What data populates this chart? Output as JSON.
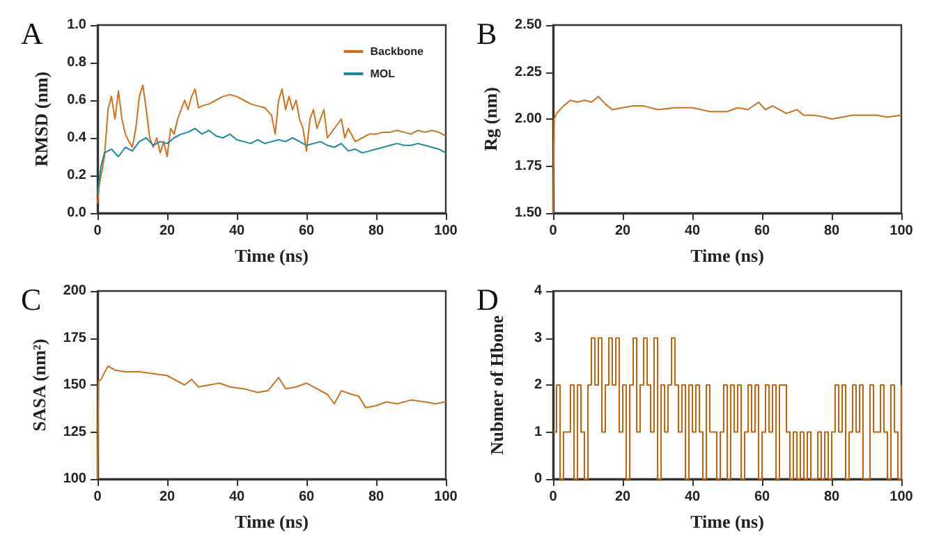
{
  "chart_data": [
    {
      "type": "line",
      "title": "A",
      "xlabel": "Time (ns)",
      "ylabel": "RMSD (nm)",
      "xlim": [
        0,
        100
      ],
      "xticks": [
        0,
        20,
        40,
        60,
        80,
        100
      ],
      "ylim": [
        0,
        1
      ],
      "yticks": [
        {
          "value": 0,
          "label": "0.0"
        },
        {
          "value": 0.2,
          "label": "0.2"
        },
        {
          "value": 0.4,
          "label": "0.4"
        },
        {
          "value": 0.6,
          "label": "0.6"
        },
        {
          "value": 0.8,
          "label": "0.8"
        },
        {
          "value": 1,
          "label": "1.0"
        }
      ],
      "grid": false,
      "legend": "top right",
      "marker": "none",
      "x": [
        0,
        0.5,
        1,
        2,
        3,
        4,
        5,
        6,
        7,
        8,
        9,
        10,
        11,
        12,
        13,
        14,
        15,
        16,
        17,
        18,
        19,
        20,
        21,
        22,
        23,
        24,
        25,
        26,
        27,
        28,
        29,
        30,
        32,
        34,
        36,
        38,
        40,
        42,
        44,
        46,
        48,
        50,
        51,
        52,
        53,
        54,
        55,
        56,
        57,
        58,
        59,
        60,
        61,
        62,
        63,
        64,
        65,
        66,
        68,
        70,
        71,
        72,
        74,
        76,
        78,
        80,
        82,
        84,
        86,
        88,
        90,
        92,
        94,
        96,
        98,
        100
      ],
      "series": [
        {
          "name": "Backbone",
          "color": "#d0701a",
          "values": [
            0.05,
            0.15,
            0.2,
            0.3,
            0.55,
            0.62,
            0.5,
            0.65,
            0.5,
            0.42,
            0.38,
            0.35,
            0.45,
            0.62,
            0.68,
            0.55,
            0.4,
            0.35,
            0.4,
            0.32,
            0.38,
            0.3,
            0.45,
            0.42,
            0.5,
            0.55,
            0.6,
            0.55,
            0.62,
            0.66,
            0.56,
            0.57,
            0.58,
            0.6,
            0.62,
            0.63,
            0.62,
            0.6,
            0.58,
            0.57,
            0.56,
            0.52,
            0.42,
            0.6,
            0.66,
            0.55,
            0.62,
            0.55,
            0.6,
            0.5,
            0.45,
            0.33,
            0.5,
            0.55,
            0.45,
            0.5,
            0.55,
            0.4,
            0.45,
            0.5,
            0.4,
            0.45,
            0.38,
            0.4,
            0.42,
            0.42,
            0.43,
            0.43,
            0.44,
            0.43,
            0.42,
            0.44,
            0.43,
            0.44,
            0.43,
            0.41
          ]
        },
        {
          "name": "MOL",
          "color": "#1a8a9a",
          "x": [
            0,
            1,
            2,
            4,
            6,
            8,
            10,
            12,
            14,
            16,
            18,
            20,
            22,
            24,
            26,
            28,
            30,
            32,
            34,
            36,
            38,
            40,
            42,
            44,
            46,
            48,
            50,
            52,
            54,
            56,
            58,
            60,
            62,
            64,
            66,
            68,
            70,
            72,
            74,
            76,
            78,
            80,
            82,
            84,
            86,
            88,
            90,
            92,
            94,
            96,
            98,
            100
          ],
          "values": [
            0.1,
            0.25,
            0.32,
            0.34,
            0.3,
            0.35,
            0.33,
            0.38,
            0.4,
            0.36,
            0.38,
            0.37,
            0.4,
            0.42,
            0.43,
            0.45,
            0.42,
            0.44,
            0.41,
            0.4,
            0.42,
            0.39,
            0.38,
            0.37,
            0.39,
            0.37,
            0.38,
            0.39,
            0.38,
            0.4,
            0.38,
            0.36,
            0.37,
            0.38,
            0.36,
            0.35,
            0.37,
            0.33,
            0.34,
            0.32,
            0.33,
            0.34,
            0.35,
            0.36,
            0.37,
            0.36,
            0.36,
            0.37,
            0.36,
            0.35,
            0.34,
            0.32
          ]
        }
      ]
    },
    {
      "type": "line",
      "title": "B",
      "xlabel": "Time (ns)",
      "ylabel": "Rg (nm)",
      "xlim": [
        0,
        100
      ],
      "xticks": [
        0,
        20,
        40,
        60,
        80,
        100
      ],
      "ylim": [
        1.5,
        2.5
      ],
      "yticks": [
        {
          "value": 1.5,
          "label": "1.50"
        },
        {
          "value": 1.75,
          "label": "1.75"
        },
        {
          "value": 2,
          "label": "2.00"
        },
        {
          "value": 2.25,
          "label": "2.25"
        },
        {
          "value": 2.5,
          "label": "2.50"
        }
      ],
      "grid": false,
      "marker": "none",
      "x": [
        0,
        0.3,
        1,
        3,
        5,
        7,
        9,
        11,
        13,
        15,
        17,
        20,
        23,
        26,
        30,
        35,
        40,
        45,
        50,
        53,
        56,
        59,
        61,
        63,
        65,
        67,
        70,
        72,
        75,
        78,
        80,
        83,
        86,
        90,
        93,
        96,
        100
      ],
      "series": [
        {
          "color": "#d0701a",
          "values": [
            1.5,
            2.0,
            2.03,
            2.07,
            2.1,
            2.09,
            2.1,
            2.09,
            2.12,
            2.08,
            2.05,
            2.06,
            2.07,
            2.07,
            2.05,
            2.06,
            2.06,
            2.04,
            2.04,
            2.06,
            2.05,
            2.09,
            2.05,
            2.07,
            2.05,
            2.03,
            2.05,
            2.02,
            2.02,
            2.01,
            2.0,
            2.01,
            2.02,
            2.02,
            2.02,
            2.01,
            2.02
          ]
        }
      ]
    },
    {
      "type": "line",
      "title": "C",
      "xlabel": "Time (ns)",
      "ylabel": "SASA (nm²)",
      "xlim": [
        0,
        100
      ],
      "xticks": [
        0,
        20,
        40,
        60,
        80,
        100
      ],
      "ylim": [
        100,
        200
      ],
      "yticks": [
        100,
        125,
        150,
        175,
        200
      ],
      "grid": false,
      "marker": "none",
      "x": [
        0,
        0.3,
        1,
        3,
        5,
        8,
        12,
        16,
        20,
        23,
        25,
        27,
        29,
        32,
        35,
        38,
        42,
        46,
        49,
        52,
        54,
        57,
        60,
        63,
        66,
        68,
        70,
        73,
        75,
        77,
        80,
        83,
        86,
        90,
        94,
        97,
        100
      ],
      "series": [
        {
          "color": "#d0701a",
          "values": [
            100,
            152,
            153,
            160,
            158,
            157,
            157,
            156,
            155,
            152,
            150,
            153,
            149,
            150,
            151,
            149,
            148,
            146,
            147,
            154,
            148,
            149,
            151,
            148,
            145,
            140,
            147,
            145,
            144,
            138,
            139,
            141,
            140,
            142,
            141,
            140,
            141
          ]
        }
      ]
    },
    {
      "type": "step",
      "title": "D",
      "xlabel": "Time (ns)",
      "ylabel": "Nubmer of Hbone",
      "xlim": [
        0,
        100
      ],
      "xticks": [
        0,
        20,
        40,
        60,
        80,
        100
      ],
      "ylim": [
        0,
        4
      ],
      "yticks": [
        0,
        1,
        2,
        3,
        4
      ],
      "grid": false,
      "marker": "none",
      "x": [
        0,
        1,
        2,
        3,
        4,
        5,
        6,
        7,
        8,
        9,
        10,
        11,
        12,
        13,
        14,
        15,
        16,
        17,
        18,
        19,
        20,
        21,
        22,
        23,
        24,
        25,
        26,
        27,
        28,
        29,
        30,
        31,
        32,
        33,
        34,
        35,
        36,
        37,
        38,
        39,
        40,
        41,
        42,
        43,
        44,
        45,
        46,
        47,
        48,
        49,
        50,
        51,
        52,
        53,
        54,
        55,
        56,
        57,
        58,
        59,
        60,
        61,
        62,
        63,
        64,
        65,
        66,
        67,
        68,
        69,
        70,
        71,
        72,
        73,
        74,
        75,
        76,
        77,
        78,
        79,
        80,
        81,
        82,
        83,
        84,
        85,
        86,
        87,
        88,
        89,
        90,
        91,
        92,
        93,
        94,
        95,
        96,
        97,
        98,
        99,
        100
      ],
      "series": [
        {
          "color": "#c8620a",
          "values": [
            1,
            2,
            0,
            1,
            1,
            2,
            0,
            2,
            1,
            0,
            2,
            3,
            2,
            3,
            1,
            2,
            3,
            2,
            3,
            1,
            2,
            0,
            2,
            3,
            1,
            2,
            3,
            2,
            1,
            3,
            0,
            2,
            1,
            2,
            3,
            2,
            1,
            2,
            0,
            2,
            1,
            2,
            1,
            0,
            2,
            1,
            1,
            0,
            1,
            2,
            0,
            2,
            1,
            2,
            0,
            1,
            2,
            1,
            2,
            0,
            1,
            2,
            1,
            2,
            0,
            2,
            2,
            1,
            0,
            1,
            0,
            1,
            0,
            1,
            0,
            0,
            1,
            0,
            1,
            0,
            1,
            2,
            1,
            2,
            0,
            1,
            2,
            1,
            2,
            0,
            0,
            2,
            1,
            1,
            2,
            1,
            0,
            2,
            1,
            0,
            2
          ]
        }
      ]
    }
  ]
}
